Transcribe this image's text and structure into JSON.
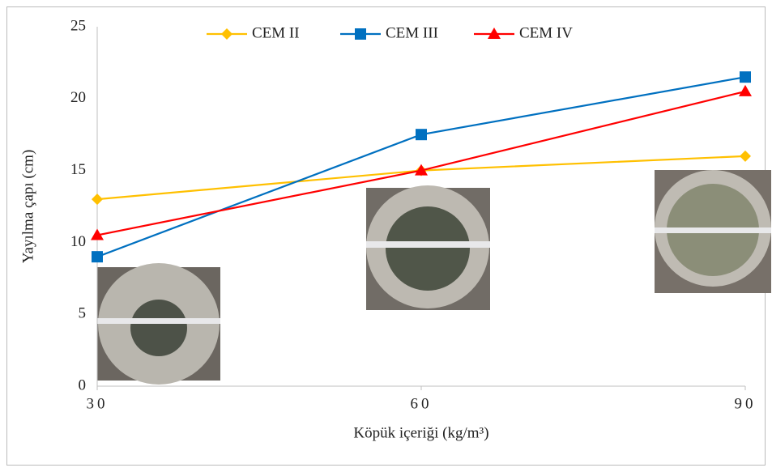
{
  "chart_data": {
    "type": "line",
    "x_label": "Köpük içeriği (kg/m³)",
    "y_label": "Yayılma çapı (cm)",
    "x": [
      30,
      60,
      90
    ],
    "series": [
      {
        "name": "CEM II",
        "color": "#FFC000",
        "marker": "diamond",
        "values": [
          13,
          15,
          16
        ]
      },
      {
        "name": "CEM III",
        "color": "#0070C0",
        "marker": "square",
        "values": [
          9,
          17.5,
          21.5
        ]
      },
      {
        "name": "CEM IV",
        "color": "#FF0000",
        "marker": "triangle",
        "values": [
          10.5,
          15,
          20.5
        ]
      }
    ],
    "xlim": [
      30,
      90
    ],
    "xticks": [
      30,
      60,
      90
    ],
    "ylim": [
      0,
      25
    ],
    "yticks": [
      0,
      5,
      10,
      15,
      20,
      25
    ],
    "grid": false,
    "legend": "top"
  }
}
